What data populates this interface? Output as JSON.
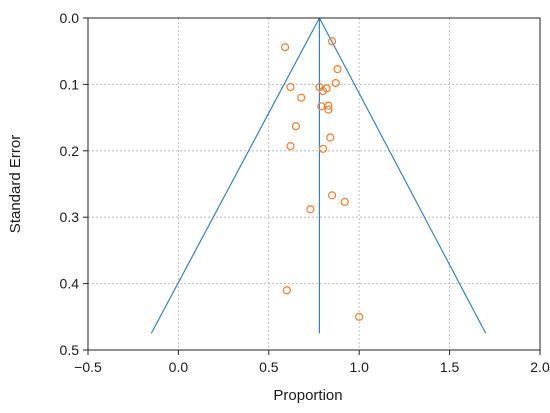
{
  "chart_data": {
    "type": "scatter",
    "title": "",
    "xlabel": "Proportion",
    "ylabel": "Standard Error",
    "xlim": [
      -0.5,
      2.0
    ],
    "ylim": [
      0.0,
      0.5
    ],
    "y_inverted": true,
    "xticks": [
      -0.5,
      0.0,
      0.5,
      1.0,
      1.5,
      2.0
    ],
    "xtick_labels": [
      "−0.5",
      "0.0",
      "0.5",
      "1.0",
      "1.5",
      "2.0"
    ],
    "yticks": [
      0.0,
      0.1,
      0.2,
      0.3,
      0.4,
      0.5
    ],
    "ytick_labels": [
      "0.0",
      "0.1",
      "0.2",
      "0.3",
      "0.4",
      "0.5"
    ],
    "grid": true,
    "colors": {
      "points": "#f07d2e",
      "lines": "#3b7fc0",
      "grid": "#b0b0b0",
      "frame": "#222222"
    },
    "pooled_estimate": 0.78,
    "funnel": {
      "apex": [
        0.78,
        0.0
      ],
      "base_left": [
        -0.15,
        0.475
      ],
      "base_right": [
        1.7,
        0.475
      ]
    },
    "points": [
      {
        "x": 0.59,
        "y": 0.044
      },
      {
        "x": 0.85,
        "y": 0.035
      },
      {
        "x": 0.88,
        "y": 0.077
      },
      {
        "x": 0.87,
        "y": 0.098
      },
      {
        "x": 0.62,
        "y": 0.104
      },
      {
        "x": 0.68,
        "y": 0.12
      },
      {
        "x": 0.78,
        "y": 0.104
      },
      {
        "x": 0.8,
        "y": 0.11
      },
      {
        "x": 0.82,
        "y": 0.106
      },
      {
        "x": 0.79,
        "y": 0.133
      },
      {
        "x": 0.83,
        "y": 0.132
      },
      {
        "x": 0.83,
        "y": 0.138
      },
      {
        "x": 0.65,
        "y": 0.163
      },
      {
        "x": 0.84,
        "y": 0.18
      },
      {
        "x": 0.62,
        "y": 0.193
      },
      {
        "x": 0.8,
        "y": 0.197
      },
      {
        "x": 0.85,
        "y": 0.267
      },
      {
        "x": 0.92,
        "y": 0.277
      },
      {
        "x": 0.73,
        "y": 0.288
      },
      {
        "x": 0.6,
        "y": 0.41
      },
      {
        "x": 1.0,
        "y": 0.45
      }
    ]
  }
}
